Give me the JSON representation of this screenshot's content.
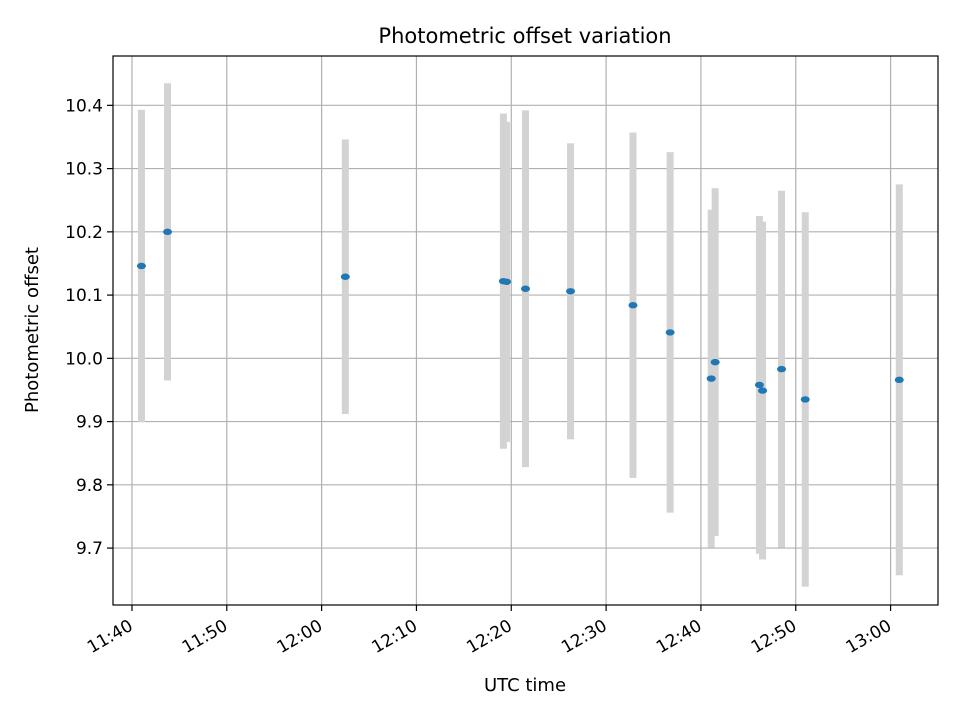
{
  "chart_data": {
    "type": "scatter",
    "title": "Photometric offset variation",
    "xlabel": "UTC time",
    "ylabel": "Photometric offset",
    "x_type": "time",
    "xlim": [
      "11:38",
      "13:05"
    ],
    "ylim": [
      9.61,
      10.478
    ],
    "x_ticks": [
      "11:40",
      "11:50",
      "12:00",
      "12:10",
      "12:20",
      "12:30",
      "12:40",
      "12:50",
      "13:00"
    ],
    "y_ticks": [
      "9.7",
      "9.8",
      "9.9",
      "10.0",
      "10.1",
      "10.2",
      "10.3",
      "10.4"
    ],
    "grid": true,
    "colors": {
      "points": "#1f77b4",
      "error_bars": "#d3d3d3",
      "grid": "#b0b0b0"
    },
    "points": [
      {
        "time": "11:41:00",
        "y": 10.146,
        "err": 0.247
      },
      {
        "time": "11:43:45",
        "y": 10.2,
        "err": 0.235
      },
      {
        "time": "12:02:30",
        "y": 10.129,
        "err": 0.217
      },
      {
        "time": "12:19:10",
        "y": 10.122,
        "err": 0.265
      },
      {
        "time": "12:19:30",
        "y": 10.121,
        "err": 0.253
      },
      {
        "time": "12:21:30",
        "y": 10.11,
        "err": 0.282
      },
      {
        "time": "12:26:15",
        "y": 10.106,
        "err": 0.234
      },
      {
        "time": "12:32:50",
        "y": 10.084,
        "err": 0.273
      },
      {
        "time": "12:36:45",
        "y": 10.041,
        "err": 0.285
      },
      {
        "time": "12:41:05",
        "y": 9.968,
        "err": 0.267
      },
      {
        "time": "12:41:30",
        "y": 9.994,
        "err": 0.275
      },
      {
        "time": "12:46:10",
        "y": 9.958,
        "err": 0.267
      },
      {
        "time": "12:46:30",
        "y": 9.949,
        "err": 0.267
      },
      {
        "time": "12:48:30",
        "y": 9.983,
        "err": 0.282
      },
      {
        "time": "12:51:00",
        "y": 9.935,
        "err": 0.296
      },
      {
        "time": "13:00:55",
        "y": 9.966,
        "err": 0.309
      }
    ]
  }
}
